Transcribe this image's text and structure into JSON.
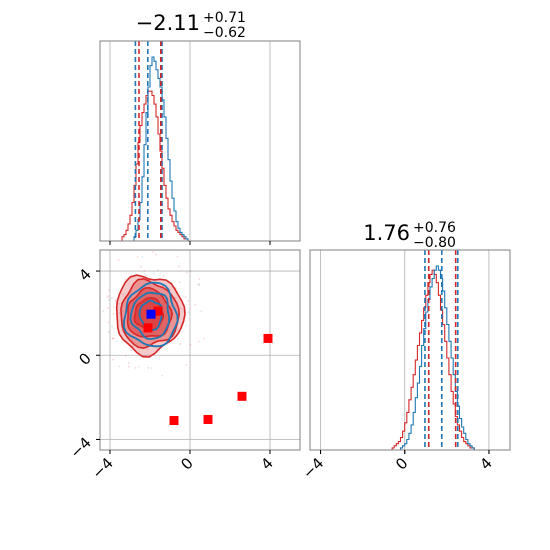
{
  "chart_data": {
    "type": "corner",
    "parameters": [
      {
        "title": {
          "median": "−2.11",
          "plus": "+0.71",
          "minus": "−0.62"
        },
        "quantiles": [
          -2.73,
          -2.11,
          -1.4
        ],
        "quantiles_compare": [
          -2.55,
          -1.46
        ],
        "range": [
          -4.5,
          5.5
        ],
        "ticks": [
          -4,
          0,
          4
        ],
        "tick_labels": [
          "−4",
          "0",
          "4"
        ]
      },
      {
        "title": {
          "median": "1.76",
          "plus": "+0.76",
          "minus": "−0.80"
        },
        "quantiles": [
          0.96,
          1.76,
          2.52
        ],
        "quantiles_compare": [
          1.14,
          2.42
        ],
        "range": [
          -4.5,
          5.0
        ],
        "ticks": [
          -4,
          0,
          4
        ],
        "tick_labels": [
          "−4",
          "0",
          "4"
        ]
      }
    ],
    "hist_blue": {
      "param1": {
        "start": -2.8,
        "width": 0.1,
        "counts": [
          2,
          5,
          10,
          18,
          30,
          45,
          60,
          72,
          82,
          86,
          84,
          80,
          76,
          72,
          66,
          58,
          48,
          38,
          28,
          20,
          14,
          9,
          6,
          4,
          3,
          2,
          1
        ]
      },
      "param2": {
        "start": -0.2,
        "width": 0.1,
        "counts": [
          1,
          2,
          3,
          5,
          8,
          12,
          18,
          25,
          32,
          40,
          50,
          58,
          66,
          72,
          78,
          82,
          86,
          88,
          86,
          82,
          76,
          68,
          60,
          52,
          44,
          36,
          28,
          21,
          15,
          11,
          8,
          5,
          3,
          2,
          1
        ]
      }
    },
    "hist_red": {
      "param1": {
        "start": -3.4,
        "width": 0.1,
        "counts": [
          2,
          3,
          5,
          8,
          12,
          18,
          26,
          36,
          46,
          54,
          60,
          64,
          68,
          70,
          70,
          68,
          64,
          58,
          50,
          42,
          34,
          26,
          20,
          15,
          12,
          9,
          7,
          5,
          4,
          3,
          2,
          1,
          1
        ]
      },
      "param2": {
        "start": -0.6,
        "width": 0.1,
        "counts": [
          1,
          2,
          3,
          4,
          6,
          9,
          13,
          18,
          24,
          30,
          36,
          43,
          50,
          56,
          62,
          68,
          74,
          80,
          84,
          86,
          84,
          80,
          74,
          67,
          60,
          52,
          44,
          36,
          28,
          22,
          16,
          12,
          9,
          6,
          4,
          3,
          2,
          1,
          1
        ]
      }
    },
    "contours": {
      "red_center": [
        -2.05,
        1.95
      ],
      "red_levels": [
        {
          "rx": 1.7,
          "ry": 1.85,
          "fill": 0.45
        },
        {
          "rx": 1.45,
          "ry": 1.55,
          "fill": 0.6
        },
        {
          "rx": 1.1,
          "ry": 1.15,
          "fill": 0.8
        },
        {
          "rx": 0.7,
          "ry": 0.75,
          "fill": 0.95
        }
      ],
      "blue_center": [
        -1.95,
        1.9
      ],
      "blue_levels": [
        {
          "rx": 1.3,
          "ry": 1.5
        },
        {
          "rx": 0.95,
          "ry": 1.1
        },
        {
          "rx": 0.55,
          "ry": 0.7
        }
      ]
    },
    "markers": {
      "red": [
        [
          -2.1,
          1.3
        ],
        [
          -1.6,
          2.1
        ],
        [
          3.9,
          0.8
        ],
        [
          2.6,
          -1.95
        ],
        [
          0.9,
          -3.05
        ],
        [
          -0.8,
          -3.1
        ]
      ],
      "blue": [
        [
          -1.95,
          1.95
        ]
      ]
    }
  },
  "colors": {
    "blue": "#1f77b4",
    "red": "#d62728",
    "marker_red": "#ff0000",
    "marker_blue": "#0000ff",
    "grid": "#b0b0b0",
    "axis": "#808080"
  }
}
